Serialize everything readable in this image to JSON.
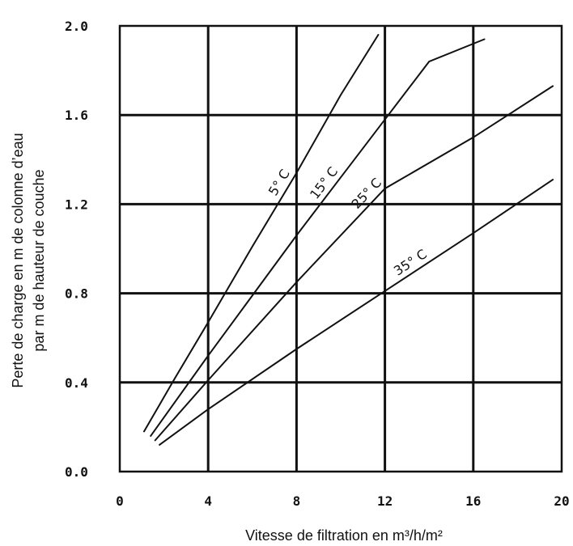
{
  "chart_data": {
    "type": "line",
    "xlabel": "Vitesse de filtration en m³/h/m²",
    "ylabel": [
      "Perte de charge en m de colonne d’eau",
      "par m de hauteur de couche"
    ],
    "xlim": [
      0,
      20
    ],
    "ylim": [
      0.0,
      2.0
    ],
    "x_ticks": [
      "0",
      "4",
      "8",
      "12",
      "16",
      "20"
    ],
    "y_ticks": [
      "0.0",
      "0.4",
      "0.8",
      "1.2",
      "1.6",
      "2.0"
    ],
    "grid": true,
    "series": [
      {
        "name": "5° C",
        "label_at": 7.6,
        "points": [
          [
            1.1,
            0.18
          ],
          [
            2.5,
            0.42
          ],
          [
            4.0,
            0.67
          ],
          [
            6.0,
            1.01
          ],
          [
            8.0,
            1.34
          ],
          [
            10.0,
            1.69
          ],
          [
            11.7,
            1.96
          ]
        ]
      },
      {
        "name": "15° C",
        "label_at": 9.6,
        "points": [
          [
            1.4,
            0.16
          ],
          [
            4.0,
            0.52
          ],
          [
            6.0,
            0.79
          ],
          [
            8.0,
            1.06
          ],
          [
            10.0,
            1.32
          ],
          [
            12.0,
            1.58
          ],
          [
            14.0,
            1.84
          ],
          [
            16.5,
            1.94
          ]
        ]
      },
      {
        "name": "25° C",
        "label_at": 11.5,
        "points": [
          [
            1.6,
            0.14
          ],
          [
            4.0,
            0.41
          ],
          [
            8.0,
            0.85
          ],
          [
            12.0,
            1.27
          ],
          [
            16.0,
            1.5
          ],
          [
            19.6,
            1.73
          ]
        ]
      },
      {
        "name": "35° C",
        "label_at": 13.4,
        "points": [
          [
            1.8,
            0.12
          ],
          [
            4.0,
            0.28
          ],
          [
            8.0,
            0.55
          ],
          [
            12.0,
            0.81
          ],
          [
            16.0,
            1.07
          ],
          [
            19.6,
            1.31
          ]
        ]
      }
    ]
  }
}
